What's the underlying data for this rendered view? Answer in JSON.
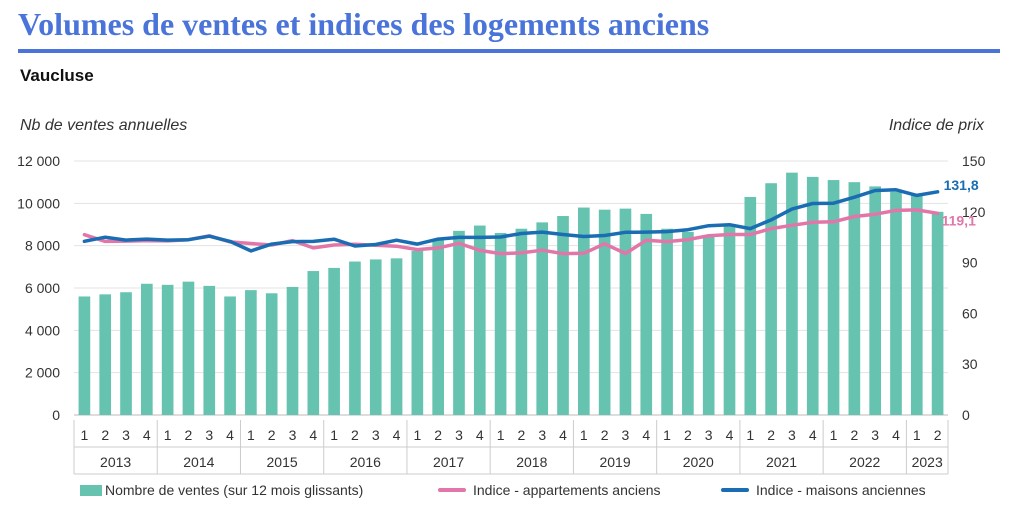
{
  "header": {
    "title": "Volumes de ventes et indices des logements anciens",
    "subtitle": "Vaucluse"
  },
  "colors": {
    "title": "#4a74d9",
    "bars": "#66c3b0",
    "apartments": "#e276a8",
    "houses": "#1a6db3"
  },
  "chart_data": {
    "type": "bar",
    "ylabel_left": "Nb de ventes annuelles",
    "ylabel_right": "Indice de prix",
    "ylim_left": [
      0,
      12000
    ],
    "ylim_right": [
      0,
      150
    ],
    "yticks_left": [
      "0",
      "2 000",
      "4 000",
      "6 000",
      "8 000",
      "10 000",
      "12 000"
    ],
    "yticks_right": [
      "0",
      "30",
      "60",
      "90",
      "120",
      "150"
    ],
    "grid": true,
    "legend_position": "bottom",
    "quarters": [
      "1",
      "2",
      "3",
      "4",
      "1",
      "2",
      "3",
      "4",
      "1",
      "2",
      "3",
      "4",
      "1",
      "2",
      "3",
      "4",
      "1",
      "2",
      "3",
      "4",
      "1",
      "2",
      "3",
      "4",
      "1",
      "2",
      "3",
      "4",
      "1",
      "2",
      "3",
      "4",
      "1",
      "2",
      "3",
      "4",
      "1",
      "2",
      "3",
      "4",
      "1",
      "2"
    ],
    "years": [
      "2013",
      "2014",
      "2015",
      "2016",
      "2017",
      "2018",
      "2019",
      "2020",
      "2021",
      "2022",
      "2023"
    ],
    "series": [
      {
        "name": "Nombre de ventes (sur 12 mois glissants)",
        "kind": "bar",
        "axis": "left",
        "values": [
          5600,
          5700,
          5800,
          6200,
          6150,
          6300,
          6100,
          5600,
          5900,
          5750,
          6050,
          6800,
          6950,
          7250,
          7350,
          7400,
          7750,
          8300,
          8700,
          8950,
          8600,
          8800,
          9100,
          9400,
          9800,
          9700,
          9750,
          9500,
          8800,
          8650,
          8450,
          8950,
          10300,
          10950,
          11450,
          11250,
          11100,
          11000,
          10800,
          10550,
          10400,
          9600
        ]
      },
      {
        "name": "Indice - appartements anciens",
        "kind": "line",
        "axis": "right",
        "values": [
          106.5,
          102.5,
          102.7,
          103.0,
          102.8,
          103.5,
          105.8,
          102.2,
          101.3,
          100.4,
          103.0,
          98.7,
          100.4,
          100.8,
          100.3,
          99.7,
          97.7,
          98.7,
          101.4,
          97.2,
          95.3,
          95.7,
          97.3,
          95.3,
          95.5,
          101.1,
          95.4,
          103.2,
          102.4,
          103.6,
          105.9,
          106.6,
          106.6,
          110.1,
          112.0,
          113.8,
          114.1,
          117.2,
          118.6,
          120.8,
          121.1,
          119.1
        ]
      },
      {
        "name": "Indice - maisons anciennes",
        "kind": "line",
        "axis": "right",
        "values": [
          102.6,
          105.0,
          103.3,
          103.9,
          103.3,
          103.5,
          105.6,
          102.5,
          96.9,
          100.9,
          102.4,
          102.5,
          103.8,
          99.8,
          100.7,
          103.2,
          100.9,
          103.9,
          104.9,
          104.9,
          105.1,
          107.2,
          108.0,
          106.6,
          105.4,
          106.0,
          107.9,
          108.0,
          108.3,
          109.4,
          111.8,
          112.4,
          110.1,
          115.2,
          121.6,
          124.9,
          125.1,
          128.6,
          132.6,
          133.0,
          129.7,
          131.8
        ]
      }
    ],
    "end_labels": {
      "houses": "131,8",
      "apartments": "119,1"
    }
  }
}
